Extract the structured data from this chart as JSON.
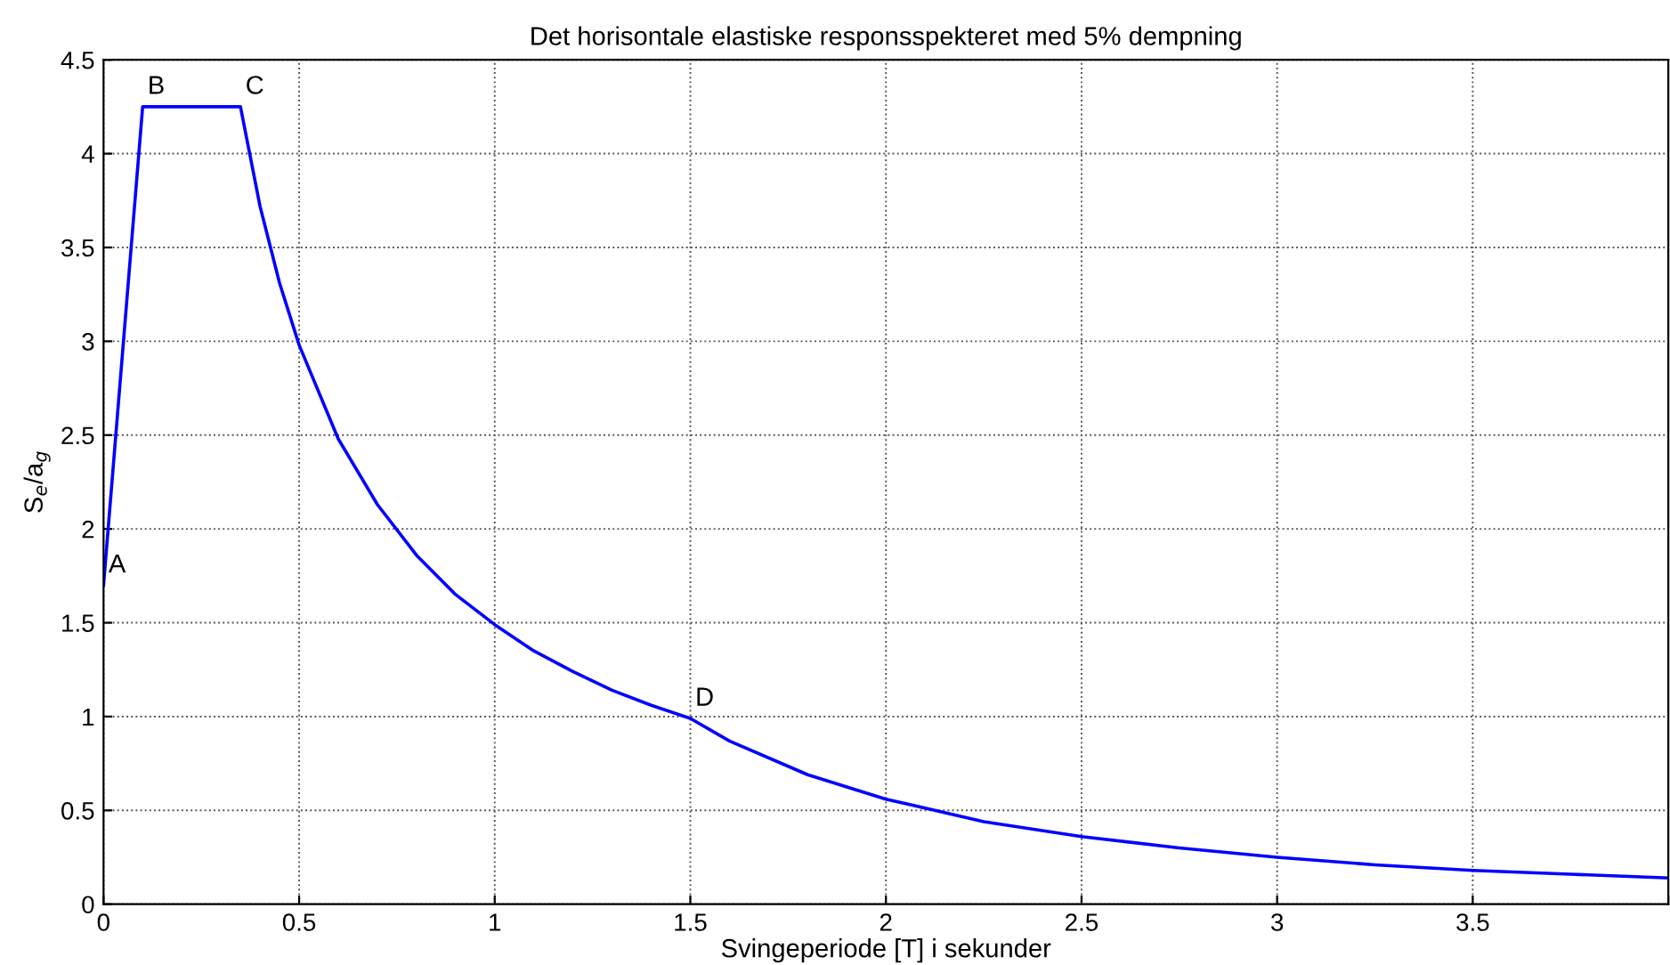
{
  "chart_data": {
    "type": "line",
    "title": "Det horisontale elastiske responsspekteret med 5% dempning",
    "xlabel": "Svingeperiode [T] i sekunder",
    "ylabel": "S$_{e}$/a$_{g}$",
    "x": [
      0,
      0.1,
      0.35,
      0.4,
      0.45,
      0.5,
      0.6,
      0.7,
      0.8,
      0.9,
      1.0,
      1.1,
      1.2,
      1.3,
      1.4,
      1.5,
      1.6,
      1.8,
      2.0,
      2.25,
      2.5,
      2.75,
      3.0,
      3.25,
      3.5,
      3.75,
      4.0
    ],
    "series": [
      {
        "color": "#0000ff",
        "values": [
          1.7,
          4.25,
          4.25,
          3.72,
          3.31,
          2.98,
          2.48,
          2.13,
          1.86,
          1.65,
          1.49,
          1.35,
          1.24,
          1.14,
          1.06,
          0.99,
          0.87,
          0.69,
          0.56,
          0.44,
          0.36,
          0.3,
          0.25,
          0.21,
          0.18,
          0.16,
          0.14
        ]
      }
    ],
    "xlim": [
      0,
      4
    ],
    "xticks": [
      0,
      0.5,
      1,
      1.5,
      2,
      2.5,
      3,
      3.5,
      {
        "value": 4,
        "label": null
      }
    ],
    "ylim": [
      0,
      4.5
    ],
    "yticks": [
      0,
      0.5,
      1,
      1.5,
      2,
      2.5,
      3,
      3.5,
      4,
      4.5
    ],
    "grid": true,
    "line_style": "solid",
    "annotations": [
      {
        "text": "A",
        "x": 0,
        "y": 1.7
      },
      {
        "text": "B",
        "x": 0.1,
        "y": 4.25
      },
      {
        "text": "C",
        "x": 0.35,
        "y": 4.25
      },
      {
        "text": "D",
        "x": 1.5,
        "y": 0.99
      }
    ]
  }
}
